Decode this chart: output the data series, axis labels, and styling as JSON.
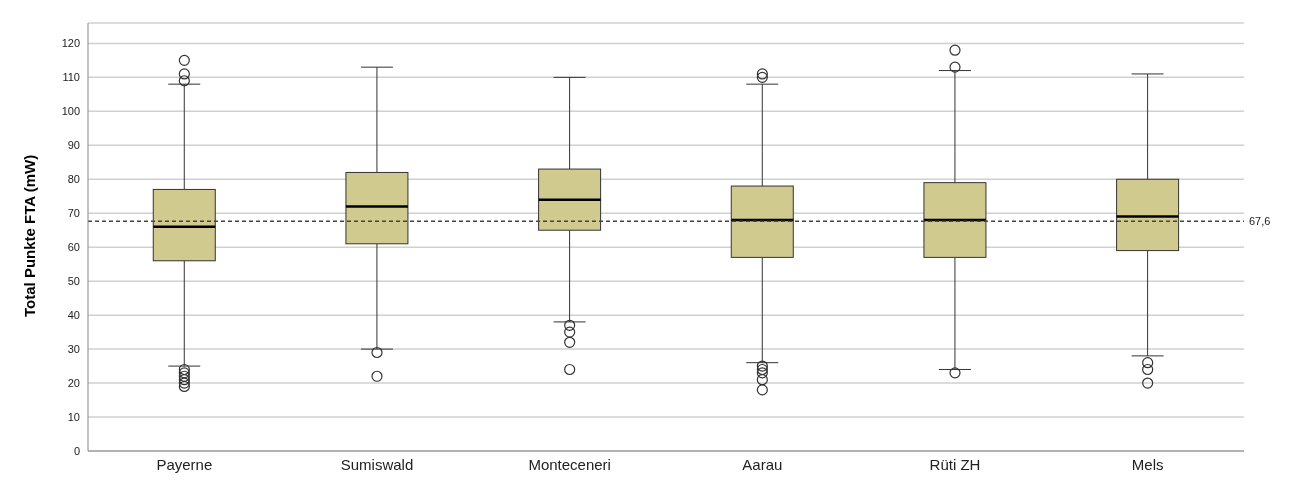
{
  "chart_data": {
    "type": "box",
    "ylabel": "Total Punkte FTA (mW)",
    "categories": [
      "Payerne",
      "Sumiswald",
      "Monteceneri",
      "Aarau",
      "Rüti ZH",
      "Mels"
    ],
    "color": "#d0ca8e",
    "boxes": [
      {
        "low": 25,
        "q1": 56,
        "median": 66,
        "q3": 77,
        "high": 108,
        "outliers": [
          109,
          111,
          115,
          19,
          20,
          21,
          22,
          23,
          24
        ]
      },
      {
        "low": 30,
        "q1": 61,
        "median": 72,
        "q3": 82,
        "high": 113,
        "outliers": [
          29,
          22
        ]
      },
      {
        "low": 38,
        "q1": 65,
        "median": 74,
        "q3": 83,
        "high": 110,
        "outliers": [
          37,
          35,
          32,
          24
        ]
      },
      {
        "low": 26,
        "q1": 57,
        "median": 68,
        "q3": 78,
        "high": 108,
        "outliers": [
          110,
          111,
          25,
          24,
          23,
          21,
          18
        ]
      },
      {
        "low": 24,
        "q1": 57,
        "median": 68,
        "q3": 79,
        "high": 112,
        "outliers": [
          113,
          118,
          23
        ]
      },
      {
        "low": 28,
        "q1": 59,
        "median": 69,
        "q3": 80,
        "high": 111,
        "outliers": [
          26,
          24,
          20
        ]
      }
    ],
    "ylim": [
      0,
      126
    ],
    "yticks": [
      0,
      10,
      20,
      30,
      40,
      50,
      60,
      70,
      80,
      90,
      100,
      110,
      120
    ],
    "grid": "y",
    "ref_lines": [
      {
        "axis": "y",
        "value": 67.6,
        "label": "67,6",
        "line_style": "dashed"
      }
    ]
  }
}
